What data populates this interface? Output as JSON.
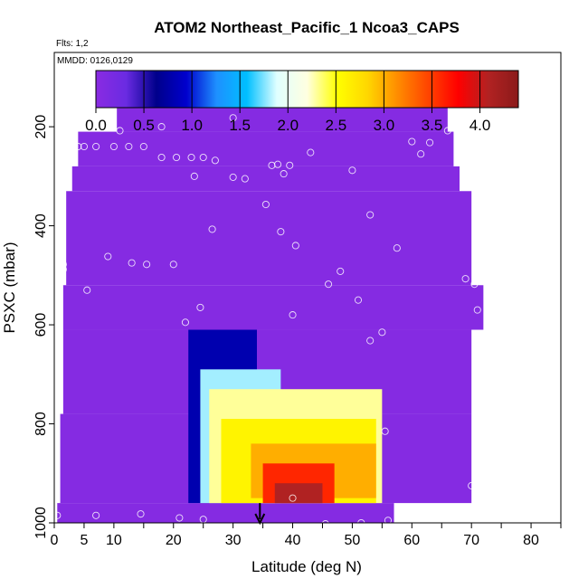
{
  "chart_data": {
    "type": "heatmap",
    "title": "ATOM2 Northeast_Pacific_1 Ncoa3_CAPS",
    "flights_note": "Flts: 1,2",
    "dates_note": "MMDD: 0126,0129",
    "xlabel": "Latitude (deg N)",
    "ylabel": "PSXC (mbar)",
    "xlim": [
      0,
      85
    ],
    "ylim": [
      1000,
      50
    ],
    "y_reversed": true,
    "x_ticks": [
      "0",
      "5",
      "10",
      "20",
      "30",
      "40",
      "50",
      "60",
      "70",
      "80"
    ],
    "x_tick_values": [
      0,
      5,
      10,
      20,
      30,
      40,
      50,
      60,
      70,
      80
    ],
    "y_ticks": [
      "200",
      "400",
      "600",
      "800",
      "1000"
    ],
    "y_tick_values": [
      200,
      400,
      600,
      800,
      1000
    ],
    "colorbar": {
      "range": [
        0,
        4.4
      ],
      "tick_labels": [
        "0.0",
        "0.5",
        "1.0",
        "1.5",
        "2.0",
        "2.5",
        "3.0",
        "3.5",
        "4.0"
      ],
      "tick_values": [
        0,
        0.5,
        1.0,
        1.5,
        2.0,
        2.5,
        3.0,
        3.5,
        4.0
      ],
      "colors": [
        "#8a2be2",
        "#6a2be2",
        "#00008b",
        "#0000cd",
        "#1e90ff",
        "#00bfff",
        "#e0ffff",
        "#ffffe0",
        "#ffff00",
        "#ffd700",
        "#ff8c00",
        "#ff4500",
        "#ff0000",
        "#b22222",
        "#8b1a1a"
      ]
    },
    "marker_latitude": 34.5,
    "background_fill": [
      {
        "lat": [
          10.5,
          66
        ],
        "p": [
          160,
          210
        ],
        "value": 0.05
      },
      {
        "lat": [
          4,
          67
        ],
        "p": [
          210,
          280
        ],
        "value": 0.05
      },
      {
        "lat": [
          3,
          68
        ],
        "p": [
          280,
          330
        ],
        "value": 0.05
      },
      {
        "lat": [
          2,
          70
        ],
        "p": [
          330,
          520
        ],
        "value": 0.05
      },
      {
        "lat": [
          1.5,
          72
        ],
        "p": [
          520,
          610
        ],
        "value": 0.05
      },
      {
        "lat": [
          1.5,
          70
        ],
        "p": [
          610,
          780
        ],
        "value": 0.05
      },
      {
        "lat": [
          1,
          70
        ],
        "p": [
          780,
          960
        ],
        "value": 0.05
      },
      {
        "lat": [
          0.5,
          57
        ],
        "p": [
          960,
          1000
        ],
        "value": 0.05
      }
    ],
    "plume": [
      {
        "lat": [
          22.5,
          34
        ],
        "p": [
          610,
          960
        ],
        "value": 0.8
      },
      {
        "lat": [
          24.5,
          38
        ],
        "p": [
          690,
          960
        ],
        "value": 1.8
      },
      {
        "lat": [
          26,
          55
        ],
        "p": [
          730,
          960
        ],
        "value": 2.3
      },
      {
        "lat": [
          28,
          54
        ],
        "p": [
          790,
          960
        ],
        "value": 2.6
      },
      {
        "lat": [
          33,
          54
        ],
        "p": [
          840,
          950
        ],
        "value": 3.0
      },
      {
        "lat": [
          35,
          47
        ],
        "p": [
          880,
          960
        ],
        "value": 3.6
      },
      {
        "lat": [
          37,
          45
        ],
        "p": [
          920,
          960
        ],
        "value": 4.1
      }
    ],
    "observations": [
      {
        "lat": 11,
        "p": 208
      },
      {
        "lat": 18,
        "p": 200
      },
      {
        "lat": 30,
        "p": 182
      },
      {
        "lat": 4,
        "p": 240
      },
      {
        "lat": 5,
        "p": 240
      },
      {
        "lat": 7,
        "p": 240
      },
      {
        "lat": 10,
        "p": 240
      },
      {
        "lat": 12.5,
        "p": 240
      },
      {
        "lat": 15,
        "p": 240
      },
      {
        "lat": 18,
        "p": 262
      },
      {
        "lat": 20.5,
        "p": 262
      },
      {
        "lat": 23,
        "p": 262
      },
      {
        "lat": 25,
        "p": 262
      },
      {
        "lat": 27,
        "p": 268
      },
      {
        "lat": 23.5,
        "p": 300
      },
      {
        "lat": 30,
        "p": 302
      },
      {
        "lat": 32,
        "p": 305
      },
      {
        "lat": 36.5,
        "p": 278
      },
      {
        "lat": 37.5,
        "p": 276
      },
      {
        "lat": 38.5,
        "p": 295
      },
      {
        "lat": 39.5,
        "p": 278
      },
      {
        "lat": 43,
        "p": 252
      },
      {
        "lat": 50,
        "p": 288
      },
      {
        "lat": 60,
        "p": 230
      },
      {
        "lat": 61.5,
        "p": 255
      },
      {
        "lat": 63,
        "p": 232
      },
      {
        "lat": 66,
        "p": 208
      },
      {
        "lat": 35.5,
        "p": 357
      },
      {
        "lat": 26.5,
        "p": 407
      },
      {
        "lat": 38,
        "p": 412
      },
      {
        "lat": 40.5,
        "p": 440
      },
      {
        "lat": 53,
        "p": 378
      },
      {
        "lat": 57.5,
        "p": 445
      },
      {
        "lat": 1.5,
        "p": 478
      },
      {
        "lat": 1.5,
        "p": 488
      },
      {
        "lat": 9,
        "p": 462
      },
      {
        "lat": 13,
        "p": 475
      },
      {
        "lat": 15.5,
        "p": 478
      },
      {
        "lat": 20,
        "p": 478
      },
      {
        "lat": 48,
        "p": 492
      },
      {
        "lat": 46,
        "p": 518
      },
      {
        "lat": 69,
        "p": 507
      },
      {
        "lat": 70.5,
        "p": 518
      },
      {
        "lat": 5.5,
        "p": 530
      },
      {
        "lat": 51,
        "p": 550
      },
      {
        "lat": 24.5,
        "p": 565
      },
      {
        "lat": 22,
        "p": 595
      },
      {
        "lat": 40,
        "p": 580
      },
      {
        "lat": 71,
        "p": 570
      },
      {
        "lat": 55,
        "p": 615
      },
      {
        "lat": 53,
        "p": 632
      },
      {
        "lat": 55.5,
        "p": 815
      },
      {
        "lat": 70,
        "p": 925
      },
      {
        "lat": 40,
        "p": 950
      },
      {
        "lat": 0.5,
        "p": 985
      },
      {
        "lat": 7,
        "p": 985
      },
      {
        "lat": 14.5,
        "p": 982
      },
      {
        "lat": 21,
        "p": 990
      },
      {
        "lat": 25,
        "p": 993
      },
      {
        "lat": 45.5,
        "p": 1002
      },
      {
        "lat": 51.5,
        "p": 1000
      },
      {
        "lat": 56,
        "p": 995
      }
    ]
  }
}
